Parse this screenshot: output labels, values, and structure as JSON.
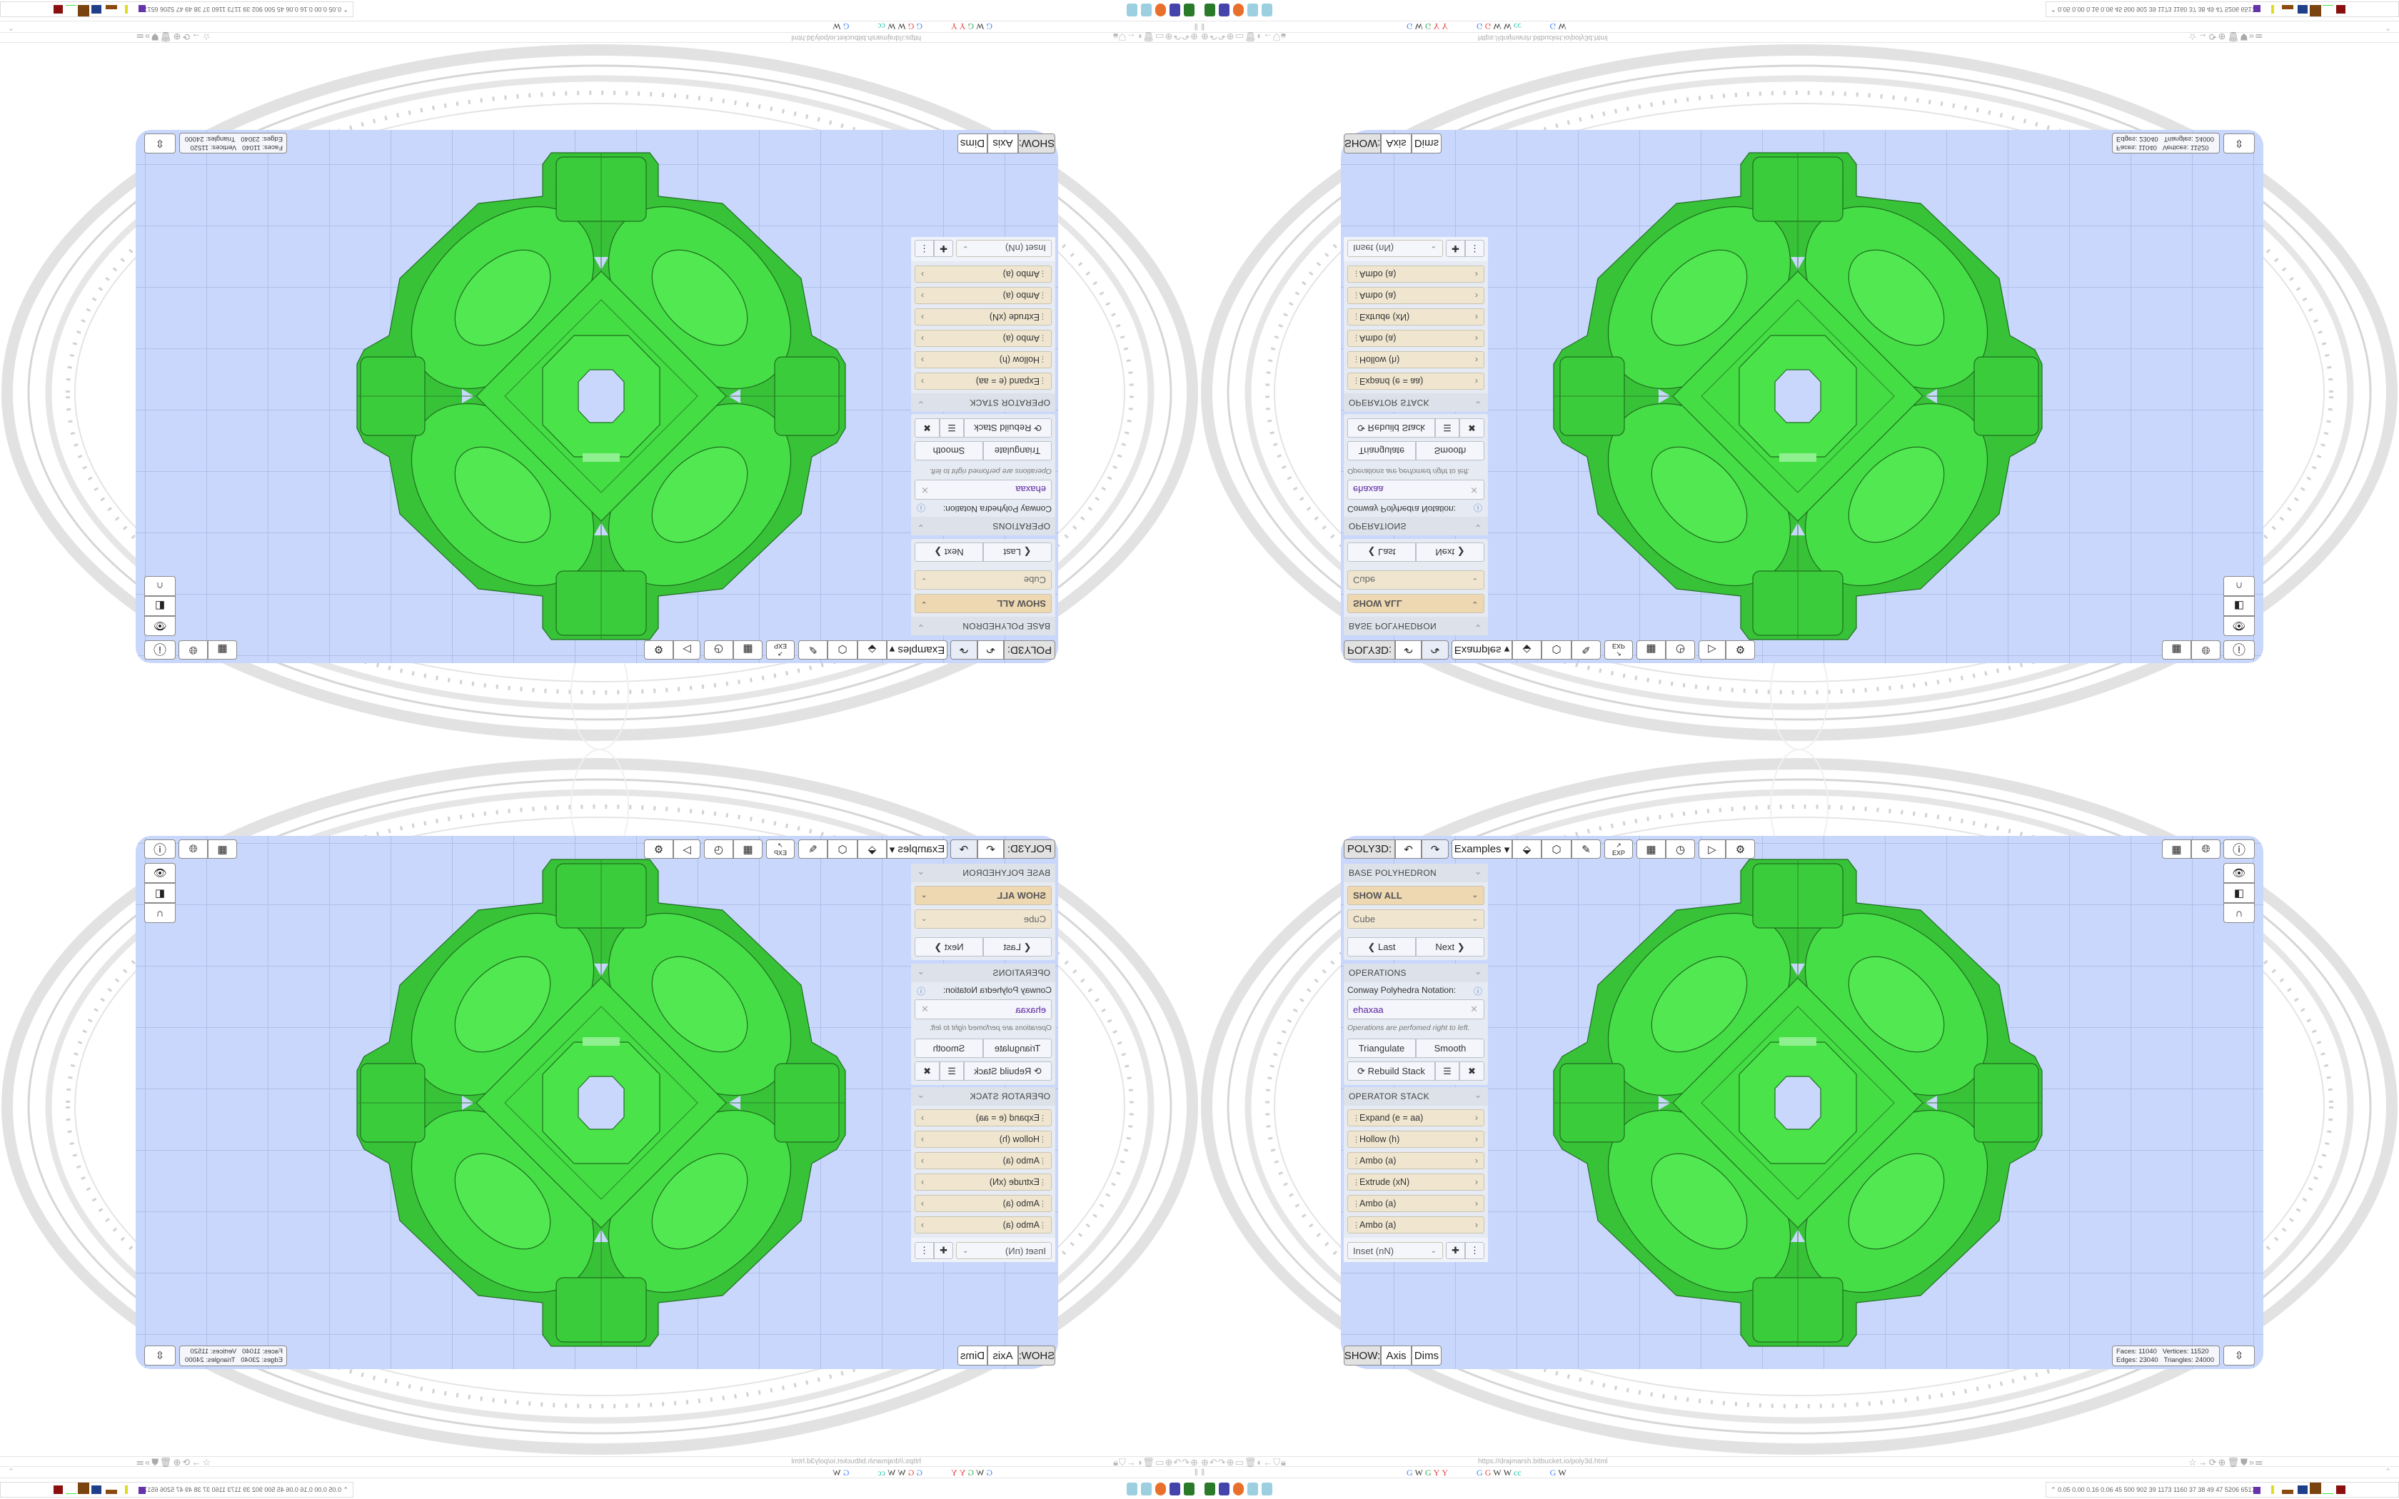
{
  "browser": {
    "url": "https://drajmarsh.bitbucket.io/poly3d.html",
    "bookmark_labels": [
      "G",
      "W",
      "G",
      "Y",
      "Y",
      "G",
      "G",
      "W",
      "W",
      "cc",
      "G",
      "W"
    ],
    "tray_readout": "0.05 0.00 0.16 0.06 45 500 902 39 1173 1160 37 38 49 47 5206 6517"
  },
  "toolbar": {
    "app_label": "POLY3D:",
    "examples_label": "Examples",
    "exp_label": "EXP",
    "icons": [
      "undo-icon",
      "redo-icon",
      "paint-bucket-icon",
      "cube-icon",
      "pencil-icon",
      "export-icon",
      "calendar-icon",
      "clock-icon",
      "play-icon",
      "gear-icon"
    ]
  },
  "panel": {
    "base": {
      "title": "BASE POLYHEDRON",
      "filter": "SHOW ALL",
      "shape": "Cube",
      "last": "Last",
      "next": "Next"
    },
    "operations": {
      "title": "OPERATIONS",
      "notation_label": "Conway Polyhedra Notation:",
      "notation_value": "ehaxaa",
      "hint": "Operations are perfomed right to left.",
      "triangulate": "Triangulate",
      "smooth": "Smooth",
      "rebuild": "Rebuild Stack"
    },
    "stack": {
      "title": "OPERATOR STACK",
      "items": [
        "Expand (e = aa)",
        "Hollow (h)",
        "Ambo (a)",
        "Extrude (xN)",
        "Ambo (a)",
        "Ambo (a)"
      ],
      "add_select": "Inset (nN)"
    }
  },
  "show_bar": {
    "label": "SHOW:",
    "axis": "Axis",
    "dims": "Dims"
  },
  "stats": {
    "faces_label": "Faces:",
    "faces": "11040",
    "vertices_label": "Vertices:",
    "vertices": "11520",
    "edges_label": "Edges:",
    "edges": "23040",
    "triangles_label": "Triangles:",
    "triangles": "24000"
  },
  "colors": {
    "model": "#44dd44",
    "viewport": "#c8d7fb",
    "stack_item": "#f0e6d0",
    "notation": "#5a1fa0"
  }
}
